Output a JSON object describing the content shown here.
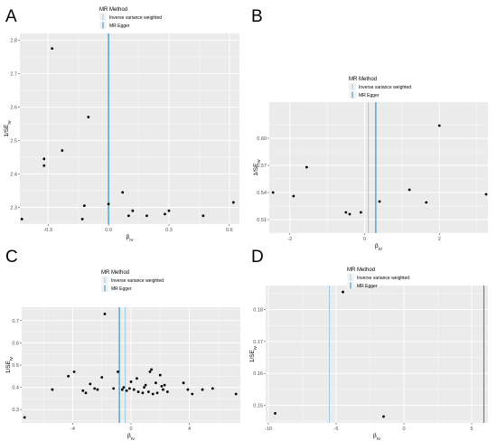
{
  "legend": {
    "title": "MR Method",
    "entries": [
      "Inverse variance weighted",
      "MR Egger"
    ]
  },
  "colors": {
    "ivw": "#9ecae1",
    "egger": "#2b8cbe",
    "panel_bg": "#ebebeb",
    "grid": "#ffffff",
    "point": "#000000"
  },
  "chart_data": [
    {
      "panel": "A",
      "type": "scatter",
      "xlabel": "β_IV",
      "ylabel": "1/SE_IV",
      "xlim": [
        -0.44,
        0.65
      ],
      "ylim": [
        2.25,
        2.82
      ],
      "xticks": [
        -0.3,
        0.0,
        0.3,
        0.6
      ],
      "xtick_labels": [
        "-0.3",
        "0.0",
        "0.3",
        "0.6"
      ],
      "yticks": [
        2.3,
        2.4,
        2.5,
        2.6,
        2.7,
        2.8
      ],
      "ytick_labels": [
        "2.3",
        "2.4",
        "2.5",
        "2.6",
        "2.7",
        "2.8"
      ],
      "ivw_x": 0.0,
      "egger_x": 0.0,
      "legend_position": "top-right",
      "x": [
        -0.43,
        -0.32,
        -0.32,
        -0.28,
        -0.23,
        -0.13,
        -0.12,
        -0.1,
        0.0,
        0.07,
        0.1,
        0.12,
        0.19,
        0.28,
        0.3,
        0.47,
        0.62
      ],
      "y": [
        2.265,
        2.425,
        2.445,
        2.775,
        2.47,
        2.265,
        2.305,
        2.57,
        2.31,
        2.345,
        2.275,
        2.29,
        2.275,
        2.28,
        2.29,
        2.275,
        2.315
      ]
    },
    {
      "panel": "B",
      "type": "scatter",
      "xlabel": "β_IV",
      "ylabel": "1/SE_IV",
      "xlim": [
        -2.55,
        3.3
      ],
      "ylim": [
        0.495,
        0.64
      ],
      "xticks": [
        -2,
        0,
        2
      ],
      "xtick_labels": [
        "-2",
        "0",
        "2"
      ],
      "yticks": [
        0.51,
        0.54,
        0.57,
        0.6
      ],
      "ytick_labels": [
        "0.51",
        "0.54",
        "0.57",
        "0.60"
      ],
      "ivw_x": 0.1,
      "egger_x": 0.3,
      "legend_position": "top-left",
      "x": [
        -2.45,
        -1.9,
        -1.55,
        -0.5,
        -0.4,
        -0.1,
        0.4,
        1.2,
        1.65,
        2.0,
        3.25
      ],
      "y": [
        0.54,
        0.536,
        0.568,
        0.518,
        0.516,
        0.518,
        0.53,
        0.543,
        0.529,
        0.614,
        0.538
      ]
    },
    {
      "panel": "C",
      "type": "scatter",
      "xlabel": "β_IV",
      "ylabel": "1/SE_IV",
      "xlim": [
        -7.5,
        7.5
      ],
      "ylim": [
        0.24,
        0.76
      ],
      "xticks": [
        -4,
        0,
        4
      ],
      "xtick_labels": [
        "-4",
        "0",
        "4"
      ],
      "yticks": [
        0.3,
        0.4,
        0.5,
        0.6,
        0.7
      ],
      "ytick_labels": [
        "0.3",
        "0.4",
        "0.5",
        "0.6",
        "0.7"
      ],
      "ivw_x": -0.4,
      "egger_x": -0.8,
      "legend_position": "top-center",
      "x": [
        -7.3,
        -5.4,
        -4.3,
        -3.9,
        -3.3,
        -3.1,
        -2.8,
        -2.5,
        -2.3,
        -2.0,
        -1.8,
        -1.2,
        -0.9,
        -0.6,
        -0.5,
        -0.3,
        -0.1,
        0.0,
        0.2,
        0.4,
        0.5,
        0.8,
        0.9,
        1.0,
        1.2,
        1.3,
        1.4,
        1.5,
        1.7,
        1.8,
        2.0,
        2.1,
        2.2,
        2.3,
        2.5,
        3.6,
        3.9,
        4.2,
        4.9,
        5.6,
        7.2
      ],
      "y": [
        0.265,
        0.39,
        0.45,
        0.47,
        0.385,
        0.375,
        0.415,
        0.395,
        0.39,
        0.445,
        0.73,
        0.395,
        0.47,
        0.39,
        0.4,
        0.385,
        0.395,
        0.425,
        0.39,
        0.44,
        0.38,
        0.375,
        0.4,
        0.41,
        0.38,
        0.47,
        0.48,
        0.37,
        0.42,
        0.375,
        0.455,
        0.405,
        0.39,
        0.41,
        0.38,
        0.42,
        0.39,
        0.37,
        0.39,
        0.395,
        0.37
      ]
    },
    {
      "panel": "D",
      "type": "scatter",
      "xlabel": "β_IV",
      "ylabel": "1/SE_IV",
      "xlim": [
        -10.2,
        6.2
      ],
      "ylim": [
        0.1445,
        0.1875
      ],
      "xticks": [
        -10,
        -5,
        0,
        5
      ],
      "xtick_labels": [
        "-10",
        "-5",
        "0",
        "5"
      ],
      "yticks": [
        0.15,
        0.16,
        0.17,
        0.18
      ],
      "ytick_labels": [
        "0.15",
        "0.16",
        "0.17",
        "0.18"
      ],
      "ivw_x": -5.5,
      "egger_x": 5.9,
      "legend_position": "top-left",
      "x": [
        -9.5,
        -4.5,
        -1.5
      ],
      "y": [
        0.1475,
        0.1855,
        0.1465
      ]
    }
  ]
}
